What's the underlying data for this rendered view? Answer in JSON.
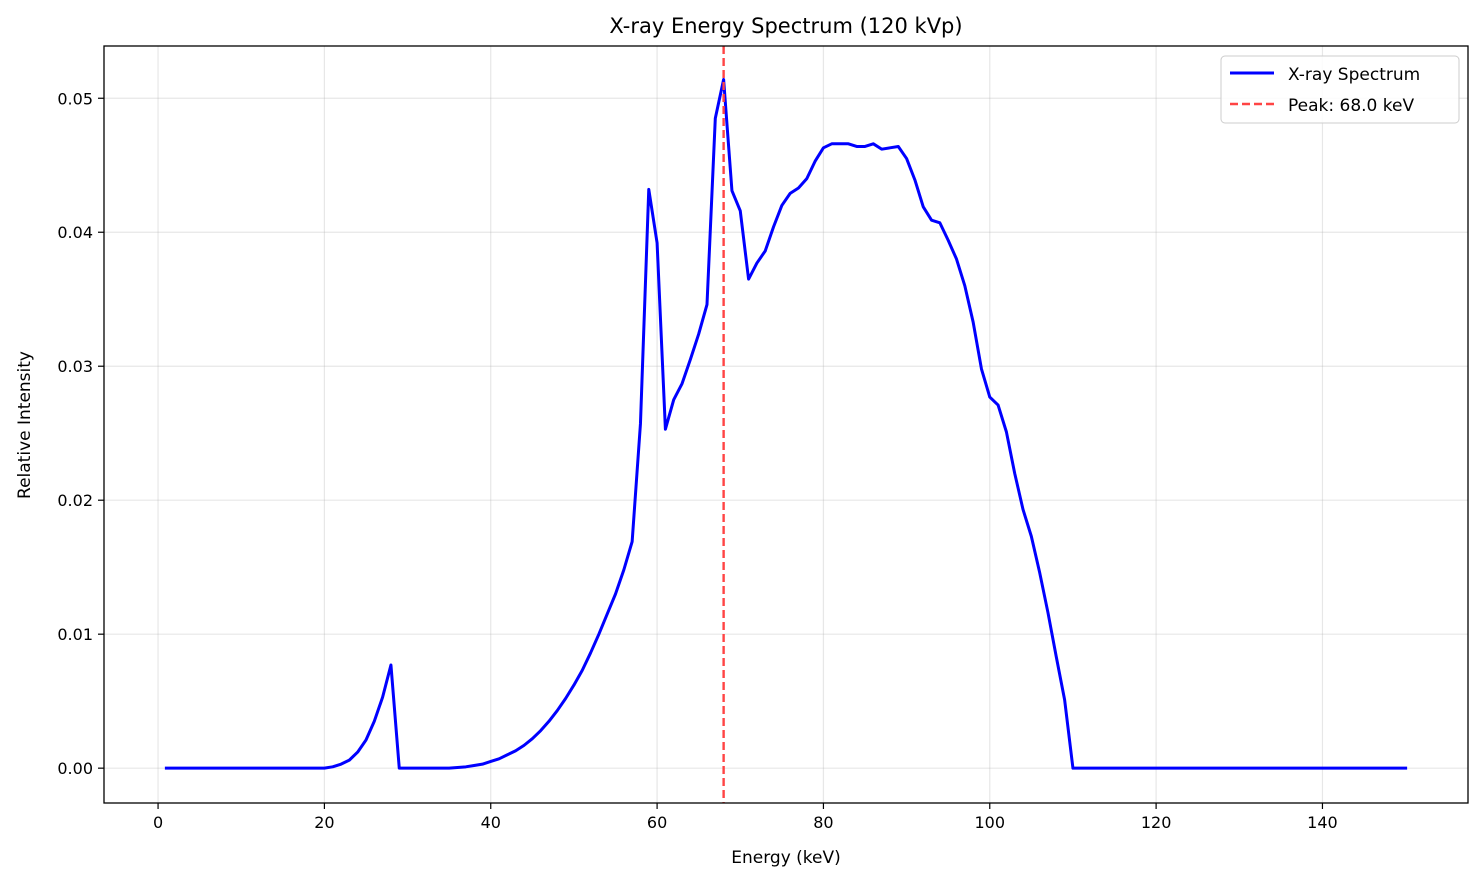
{
  "chart_data": {
    "type": "line",
    "title": "X-ray Energy Spectrum (120 kVp)",
    "xlabel": "Energy (keV)",
    "ylabel": "Relative Intensity",
    "xlim": [
      -6.5,
      157.5
    ],
    "ylim": [
      -0.0026,
      0.0539
    ],
    "x_ticks": [
      0,
      20,
      40,
      60,
      80,
      100,
      120,
      140
    ],
    "x_tick_labels": [
      "0",
      "20",
      "40",
      "60",
      "80",
      "100",
      "120",
      "140"
    ],
    "y_ticks": [
      0.0,
      0.01,
      0.02,
      0.03,
      0.04,
      0.05
    ],
    "y_tick_labels": [
      "0.00",
      "0.01",
      "0.02",
      "0.03",
      "0.04",
      "0.05"
    ],
    "grid": true,
    "legend_position": "top-right",
    "series": [
      {
        "name": "X-ray Spectrum",
        "color": "#0000ff",
        "style": "solid",
        "x": [
          1,
          2,
          3,
          4,
          5,
          6,
          7,
          8,
          9,
          10,
          11,
          12,
          13,
          14,
          15,
          16,
          17,
          18,
          19,
          20,
          21,
          22,
          23,
          24,
          25,
          26,
          27,
          28,
          29,
          30,
          31,
          32,
          33,
          34,
          35,
          36,
          37,
          38,
          39,
          40,
          41,
          42,
          43,
          44,
          45,
          46,
          47,
          48,
          49,
          50,
          51,
          52,
          53,
          54,
          55,
          56,
          57,
          58,
          59,
          60,
          61,
          62,
          63,
          64,
          65,
          66,
          67,
          68,
          69,
          70,
          71,
          72,
          73,
          74,
          75,
          76,
          77,
          78,
          79,
          80,
          81,
          82,
          83,
          84,
          85,
          86,
          87,
          88,
          89,
          90,
          91,
          92,
          93,
          94,
          95,
          96,
          97,
          98,
          99,
          100,
          101,
          102,
          103,
          104,
          105,
          106,
          107,
          108,
          109,
          110,
          111,
          112,
          113,
          114,
          115,
          116,
          117,
          118,
          119,
          120,
          121,
          122,
          123,
          124,
          125,
          126,
          127,
          128,
          129,
          130,
          131,
          132,
          133,
          134,
          135,
          136,
          137,
          138,
          139,
          140,
          141,
          142,
          143,
          144,
          145,
          146,
          147,
          148,
          149,
          150
        ],
        "y": [
          0,
          0,
          0,
          0,
          0,
          0,
          0,
          0,
          0,
          0,
          0,
          0,
          0,
          0,
          0,
          0,
          0,
          0,
          0,
          0,
          0.0001,
          0.0003,
          0.0006,
          0.0012,
          0.0021,
          0.0035,
          0.0053,
          0.0077,
          0,
          0,
          0,
          0,
          0,
          0,
          0,
          5e-05,
          0.0001,
          0.0002,
          0.0003,
          0.0005,
          0.0007,
          0.001,
          0.0013,
          0.0017,
          0.0022,
          0.0028,
          0.0035,
          0.0043,
          0.0052,
          0.0062,
          0.0073,
          0.0086,
          0.01,
          0.0115,
          0.013,
          0.0148,
          0.0169,
          0.0257,
          0.0432,
          0.0392,
          0.0253,
          0.0275,
          0.0287,
          0.0305,
          0.0324,
          0.0346,
          0.0485,
          0.0514,
          0.0431,
          0.0416,
          0.0365,
          0.0377,
          0.0386,
          0.0404,
          0.042,
          0.0429,
          0.0433,
          0.044,
          0.0453,
          0.0463,
          0.0466,
          0.0466,
          0.0466,
          0.0464,
          0.0464,
          0.0466,
          0.0462,
          0.0463,
          0.0464,
          0.0455,
          0.0439,
          0.0419,
          0.0409,
          0.0407,
          0.0394,
          0.038,
          0.036,
          0.0333,
          0.0298,
          0.0277,
          0.0271,
          0.0251,
          0.022,
          0.0193,
          0.0173,
          0.0146,
          0.0116,
          0.0083,
          0.0051,
          0,
          0,
          0,
          0,
          0,
          0,
          0,
          0,
          0,
          0,
          0,
          0,
          0,
          0,
          0,
          0,
          0,
          0,
          0,
          0,
          0,
          0,
          0,
          0,
          0,
          0,
          0,
          0,
          0,
          0,
          0,
          0,
          0,
          0,
          0,
          0,
          0,
          0,
          0,
          0,
          0
        ]
      },
      {
        "name": "Peak: 68.0 keV",
        "color": "#ff4444",
        "style": "dashed",
        "x_value": 68.0
      }
    ]
  }
}
